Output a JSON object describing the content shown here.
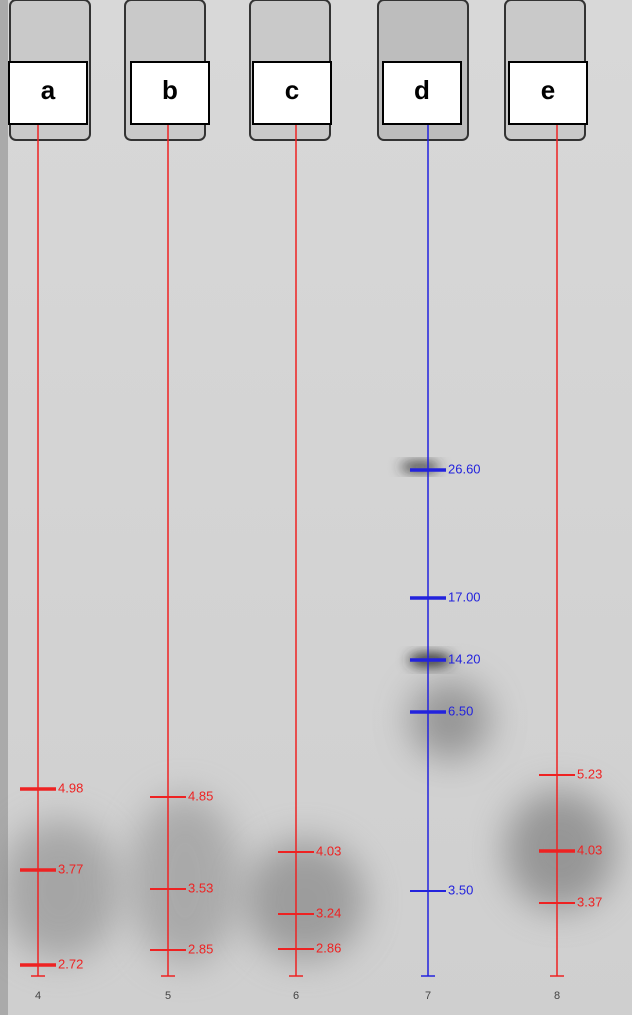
{
  "lanes": [
    {
      "label": "a",
      "number": "4",
      "markers": [
        "4.98",
        "3.77",
        "2.72"
      ]
    },
    {
      "label": "b",
      "number": "5",
      "markers": [
        "4.85",
        "3.53",
        "2.85"
      ]
    },
    {
      "label": "c",
      "number": "6",
      "markers": [
        "4.03",
        "3.24",
        "2.86"
      ]
    },
    {
      "label": "d",
      "number": "7",
      "markers": [
        "26.60",
        "17.00",
        "14.20",
        "6.50",
        "3.50"
      ]
    },
    {
      "label": "e",
      "number": "8",
      "markers": [
        "5.23",
        "4.03",
        "3.37"
      ]
    }
  ]
}
